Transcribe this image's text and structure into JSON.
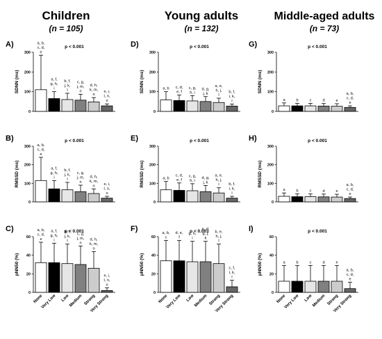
{
  "columns": [
    {
      "title": "Children",
      "n_label": "(n = 105)"
    },
    {
      "title": "Young adults",
      "n_label": "(n = 132)"
    },
    {
      "title": "Middle-aged adults",
      "n_label": "(n = 73)"
    }
  ],
  "categories": [
    "None",
    "Very Low",
    "Low",
    "Medium",
    "Strong",
    "Very Strong"
  ],
  "bar_colors": [
    "#ffffff",
    "#000000",
    "#e6e6e6",
    "#808080",
    "#cccccc",
    "#666666"
  ],
  "chart_data": [
    {
      "type": "bar",
      "panel": "A)",
      "ylabel": "SDNN (ms)",
      "ylim": [
        0,
        300
      ],
      "yticks": [
        0,
        100,
        200,
        300
      ],
      "p_label": "p < 0.001",
      "categories": [
        "None",
        "Very Low",
        "Low",
        "Medium",
        "Strong",
        "Very Strong"
      ],
      "values": [
        110,
        65,
        60,
        57,
        48,
        28
      ],
      "errors": [
        175,
        35,
        32,
        30,
        22,
        10
      ],
      "annotations": [
        "a, b, c, d, e",
        "a, f, g, h, i",
        "b, f, j, k, l",
        "c, g, j, m, n",
        "d, h, k, m, o",
        "e, i, l, n, o"
      ]
    },
    {
      "type": "bar",
      "panel": "D)",
      "ylabel": "SDNN (ms)",
      "ylim": [
        0,
        300
      ],
      "yticks": [
        0,
        100,
        200,
        300
      ],
      "p_label": "p < 0.001",
      "categories": [
        "None",
        "Very Low",
        "Low",
        "Medium",
        "Strong",
        "Very Strong"
      ],
      "values": [
        58,
        55,
        53,
        50,
        45,
        27
      ],
      "errors": [
        42,
        28,
        27,
        25,
        22,
        10
      ],
      "annotations": [
        "a, b",
        "c, d, e, f",
        "c, g, h, i",
        "d, g, j, k",
        "a, e, h, j, l",
        "b, f, i, k, l"
      ]
    },
    {
      "type": "bar",
      "panel": "G)",
      "ylabel": "SDNN (ms)",
      "ylim": [
        0,
        300
      ],
      "yticks": [
        0,
        100,
        200,
        300
      ],
      "p_label": "p < 0.001",
      "categories": [
        "None",
        "Very Low",
        "Low",
        "Medium",
        "Strong",
        "Very Strong"
      ],
      "values": [
        28,
        28,
        28,
        27,
        26,
        20
      ],
      "errors": [
        15,
        13,
        13,
        13,
        13,
        8
      ],
      "annotations": [
        "a",
        "b",
        "c",
        "d",
        "e",
        "a, b, c, d, e"
      ]
    },
    {
      "type": "bar",
      "panel": "B)",
      "ylabel": "RMSSD (ms)",
      "ylim": [
        0,
        300
      ],
      "yticks": [
        0,
        100,
        200,
        300
      ],
      "p_label": "p < 0.001",
      "categories": [
        "None",
        "Very Low",
        "Low",
        "Medium",
        "Strong",
        "Very Strong"
      ],
      "values": [
        115,
        70,
        65,
        55,
        45,
        20
      ],
      "errors": [
        125,
        45,
        40,
        35,
        25,
        10
      ],
      "annotations": [
        "a, b, c, d, e",
        "a, f, g, h, i",
        "b, f, j, k, l",
        "c, g, j, m, n",
        "d, h, k, m, o",
        "e, i, l, n, o"
      ]
    },
    {
      "type": "bar",
      "panel": "E)",
      "ylabel": "RMSSD (ms)",
      "ylim": [
        0,
        300
      ],
      "yticks": [
        0,
        100,
        200,
        300
      ],
      "p_label": "p < 0.001",
      "categories": [
        "None",
        "Very Low",
        "Low",
        "Medium",
        "Strong",
        "Very Strong"
      ],
      "values": [
        65,
        62,
        60,
        55,
        48,
        20
      ],
      "errors": [
        45,
        40,
        38,
        33,
        28,
        10
      ],
      "annotations": [
        "a, b",
        "c, d, e, f",
        "c, g, h, i",
        "d, g, j, k",
        "a, e, h, j, l",
        "b, f, i, k, l"
      ]
    },
    {
      "type": "bar",
      "panel": "H)",
      "ylabel": "RMSSD (ms)",
      "ylim": [
        0,
        300
      ],
      "yticks": [
        0,
        100,
        200,
        300
      ],
      "p_label": "p < 0.001",
      "categories": [
        "None",
        "Very Low",
        "Low",
        "Medium",
        "Strong",
        "Very Strong"
      ],
      "values": [
        30,
        28,
        28,
        27,
        26,
        18
      ],
      "errors": [
        18,
        15,
        15,
        15,
        15,
        8
      ],
      "annotations": [
        "a",
        "b",
        "c",
        "d",
        "e",
        "a, b, c, d, e"
      ]
    },
    {
      "type": "bar",
      "panel": "C)",
      "ylabel": "pNN50 (%)",
      "ylim": [
        0,
        60
      ],
      "yticks": [
        0,
        20,
        40,
        60
      ],
      "p_label": "p < 0.001",
      "categories": [
        "None",
        "Very Low",
        "Low",
        "Medium",
        "Strong",
        "Very Strong"
      ],
      "values": [
        32,
        32,
        31,
        30,
        26,
        2
      ],
      "errors": [
        22,
        21,
        21,
        20,
        18,
        3
      ],
      "annotations": [
        "a, b, c, d, e",
        "a, f, g, h, i",
        "b, f, j, k, l",
        "c, g, j, m, n",
        "d, h, k, m, o",
        "e, i, l, n, o"
      ]
    },
    {
      "type": "bar",
      "panel": "F)",
      "ylabel": "pNN50 (%)",
      "ylim": [
        0,
        60
      ],
      "yticks": [
        0,
        20,
        40,
        60
      ],
      "p_label": "p < 0.001",
      "categories": [
        "None",
        "Very Low",
        "Low",
        "Medium",
        "Strong",
        "Very Strong"
      ],
      "values": [
        34,
        34,
        33,
        33,
        31,
        6
      ],
      "errors": [
        22,
        22,
        22,
        22,
        21,
        7
      ],
      "annotations": [
        "a, b, c",
        "d, e, f",
        "g, h, i",
        "a, d, g, j, k",
        "b, e, h, j, l",
        "c, f, i, k, l"
      ]
    },
    {
      "type": "bar",
      "panel": "I)",
      "ylabel": "pNN50 (%)",
      "ylim": [
        0,
        60
      ],
      "yticks": [
        0,
        20,
        40,
        60
      ],
      "p_label": "p < 0.001",
      "categories": [
        "None",
        "Very Low",
        "Low",
        "Medium",
        "Strong",
        "Very Strong"
      ],
      "values": [
        12,
        12,
        12,
        12,
        12,
        4
      ],
      "errors": [
        17,
        17,
        17,
        17,
        17,
        7
      ],
      "annotations": [
        "a",
        "b",
        "c",
        "d",
        "e",
        "a, b, c, d, e"
      ]
    }
  ]
}
